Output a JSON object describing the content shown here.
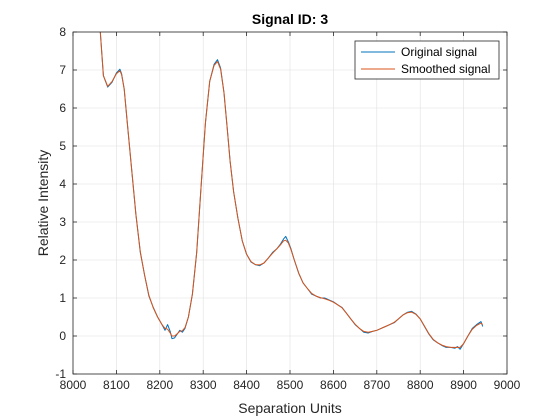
{
  "chart_data": {
    "type": "line",
    "title": "Signal ID: 3",
    "xlabel": "Separation Units",
    "ylabel": "Relative Intensity",
    "xlim": [
      8000,
      9000
    ],
    "ylim": [
      -1,
      8
    ],
    "xticks": [
      8000,
      8100,
      8200,
      8300,
      8400,
      8500,
      8600,
      8700,
      8800,
      8900,
      9000
    ],
    "yticks": [
      -1,
      0,
      1,
      2,
      3,
      4,
      5,
      6,
      7,
      8
    ],
    "grid": true,
    "legend_position": "top-right",
    "series": [
      {
        "name": "Original signal",
        "color": "#0072BD",
        "points": [
          [
            8063,
            8.0
          ],
          [
            8070,
            6.85
          ],
          [
            8080,
            6.55
          ],
          [
            8090,
            6.68
          ],
          [
            8100,
            6.92
          ],
          [
            8108,
            7.02
          ],
          [
            8112,
            6.9
          ],
          [
            8118,
            6.5
          ],
          [
            8125,
            5.6
          ],
          [
            8135,
            4.4
          ],
          [
            8145,
            3.2
          ],
          [
            8155,
            2.2
          ],
          [
            8165,
            1.6
          ],
          [
            8175,
            1.05
          ],
          [
            8185,
            0.75
          ],
          [
            8195,
            0.5
          ],
          [
            8205,
            0.3
          ],
          [
            8212,
            0.15
          ],
          [
            8218,
            0.3
          ],
          [
            8224,
            0.12
          ],
          [
            8228,
            -0.07
          ],
          [
            8234,
            -0.05
          ],
          [
            8240,
            0.05
          ],
          [
            8246,
            0.15
          ],
          [
            8252,
            0.1
          ],
          [
            8258,
            0.2
          ],
          [
            8266,
            0.5
          ],
          [
            8275,
            1.1
          ],
          [
            8285,
            2.2
          ],
          [
            8295,
            3.9
          ],
          [
            8305,
            5.6
          ],
          [
            8315,
            6.7
          ],
          [
            8325,
            7.15
          ],
          [
            8333,
            7.27
          ],
          [
            8340,
            7.05
          ],
          [
            8348,
            6.4
          ],
          [
            8355,
            5.5
          ],
          [
            8362,
            4.6
          ],
          [
            8370,
            3.8
          ],
          [
            8380,
            3.1
          ],
          [
            8390,
            2.5
          ],
          [
            8400,
            2.15
          ],
          [
            8410,
            1.95
          ],
          [
            8420,
            1.88
          ],
          [
            8430,
            1.85
          ],
          [
            8440,
            1.92
          ],
          [
            8450,
            2.05
          ],
          [
            8460,
            2.2
          ],
          [
            8470,
            2.3
          ],
          [
            8478,
            2.42
          ],
          [
            8485,
            2.55
          ],
          [
            8490,
            2.62
          ],
          [
            8496,
            2.48
          ],
          [
            8502,
            2.3
          ],
          [
            8510,
            2.0
          ],
          [
            8520,
            1.65
          ],
          [
            8530,
            1.4
          ],
          [
            8540,
            1.25
          ],
          [
            8550,
            1.1
          ],
          [
            8560,
            1.05
          ],
          [
            8570,
            1.0
          ],
          [
            8580,
            1.0
          ],
          [
            8590,
            0.95
          ],
          [
            8600,
            0.9
          ],
          [
            8610,
            0.82
          ],
          [
            8620,
            0.75
          ],
          [
            8630,
            0.6
          ],
          [
            8640,
            0.45
          ],
          [
            8650,
            0.3
          ],
          [
            8660,
            0.2
          ],
          [
            8670,
            0.1
          ],
          [
            8680,
            0.08
          ],
          [
            8690,
            0.12
          ],
          [
            8700,
            0.15
          ],
          [
            8710,
            0.2
          ],
          [
            8720,
            0.25
          ],
          [
            8730,
            0.3
          ],
          [
            8740,
            0.35
          ],
          [
            8750,
            0.45
          ],
          [
            8760,
            0.55
          ],
          [
            8770,
            0.62
          ],
          [
            8780,
            0.65
          ],
          [
            8790,
            0.58
          ],
          [
            8800,
            0.45
          ],
          [
            8810,
            0.25
          ],
          [
            8820,
            0.05
          ],
          [
            8830,
            -0.1
          ],
          [
            8840,
            -0.18
          ],
          [
            8850,
            -0.25
          ],
          [
            8860,
            -0.3
          ],
          [
            8870,
            -0.3
          ],
          [
            8880,
            -0.32
          ],
          [
            8886,
            -0.28
          ],
          [
            8892,
            -0.35
          ],
          [
            8900,
            -0.2
          ],
          [
            8910,
            0.0
          ],
          [
            8920,
            0.2
          ],
          [
            8930,
            0.3
          ],
          [
            8940,
            0.38
          ],
          [
            8944,
            0.25
          ]
        ],
        "x_offset_note": ""
      },
      {
        "name": "Smoothed signal",
        "color": "#D95319",
        "points": [
          [
            8063,
            8.0
          ],
          [
            8070,
            6.85
          ],
          [
            8080,
            6.57
          ],
          [
            8090,
            6.7
          ],
          [
            8100,
            6.9
          ],
          [
            8108,
            6.98
          ],
          [
            8112,
            6.88
          ],
          [
            8118,
            6.5
          ],
          [
            8125,
            5.62
          ],
          [
            8135,
            4.4
          ],
          [
            8145,
            3.2
          ],
          [
            8155,
            2.22
          ],
          [
            8165,
            1.6
          ],
          [
            8175,
            1.07
          ],
          [
            8185,
            0.74
          ],
          [
            8195,
            0.5
          ],
          [
            8205,
            0.3
          ],
          [
            8212,
            0.2
          ],
          [
            8218,
            0.18
          ],
          [
            8224,
            0.08
          ],
          [
            8228,
            0.0
          ],
          [
            8234,
            0.0
          ],
          [
            8240,
            0.06
          ],
          [
            8246,
            0.12
          ],
          [
            8252,
            0.14
          ],
          [
            8258,
            0.22
          ],
          [
            8266,
            0.5
          ],
          [
            8275,
            1.1
          ],
          [
            8285,
            2.2
          ],
          [
            8295,
            3.9
          ],
          [
            8305,
            5.6
          ],
          [
            8315,
            6.7
          ],
          [
            8325,
            7.12
          ],
          [
            8333,
            7.22
          ],
          [
            8340,
            7.02
          ],
          [
            8348,
            6.4
          ],
          [
            8355,
            5.5
          ],
          [
            8362,
            4.6
          ],
          [
            8370,
            3.8
          ],
          [
            8380,
            3.1
          ],
          [
            8390,
            2.5
          ],
          [
            8400,
            2.15
          ],
          [
            8410,
            1.96
          ],
          [
            8420,
            1.88
          ],
          [
            8430,
            1.87
          ],
          [
            8440,
            1.92
          ],
          [
            8450,
            2.05
          ],
          [
            8460,
            2.18
          ],
          [
            8470,
            2.3
          ],
          [
            8478,
            2.4
          ],
          [
            8485,
            2.5
          ],
          [
            8490,
            2.52
          ],
          [
            8496,
            2.45
          ],
          [
            8502,
            2.28
          ],
          [
            8510,
            2.0
          ],
          [
            8520,
            1.66
          ],
          [
            8530,
            1.4
          ],
          [
            8540,
            1.25
          ],
          [
            8550,
            1.12
          ],
          [
            8560,
            1.05
          ],
          [
            8570,
            1.01
          ],
          [
            8580,
            0.98
          ],
          [
            8590,
            0.94
          ],
          [
            8600,
            0.89
          ],
          [
            8610,
            0.82
          ],
          [
            8620,
            0.74
          ],
          [
            8630,
            0.6
          ],
          [
            8640,
            0.45
          ],
          [
            8650,
            0.31
          ],
          [
            8660,
            0.2
          ],
          [
            8670,
            0.12
          ],
          [
            8680,
            0.1
          ],
          [
            8690,
            0.12
          ],
          [
            8700,
            0.15
          ],
          [
            8710,
            0.2
          ],
          [
            8720,
            0.25
          ],
          [
            8730,
            0.3
          ],
          [
            8740,
            0.36
          ],
          [
            8750,
            0.45
          ],
          [
            8760,
            0.55
          ],
          [
            8770,
            0.61
          ],
          [
            8780,
            0.63
          ],
          [
            8790,
            0.57
          ],
          [
            8800,
            0.45
          ],
          [
            8810,
            0.26
          ],
          [
            8820,
            0.06
          ],
          [
            8830,
            -0.09
          ],
          [
            8840,
            -0.18
          ],
          [
            8850,
            -0.24
          ],
          [
            8860,
            -0.28
          ],
          [
            8870,
            -0.3
          ],
          [
            8880,
            -0.3
          ],
          [
            8886,
            -0.3
          ],
          [
            8892,
            -0.3
          ],
          [
            8900,
            -0.2
          ],
          [
            8910,
            0.0
          ],
          [
            8920,
            0.18
          ],
          [
            8930,
            0.28
          ],
          [
            8940,
            0.34
          ],
          [
            8944,
            0.3
          ]
        ]
      }
    ]
  }
}
